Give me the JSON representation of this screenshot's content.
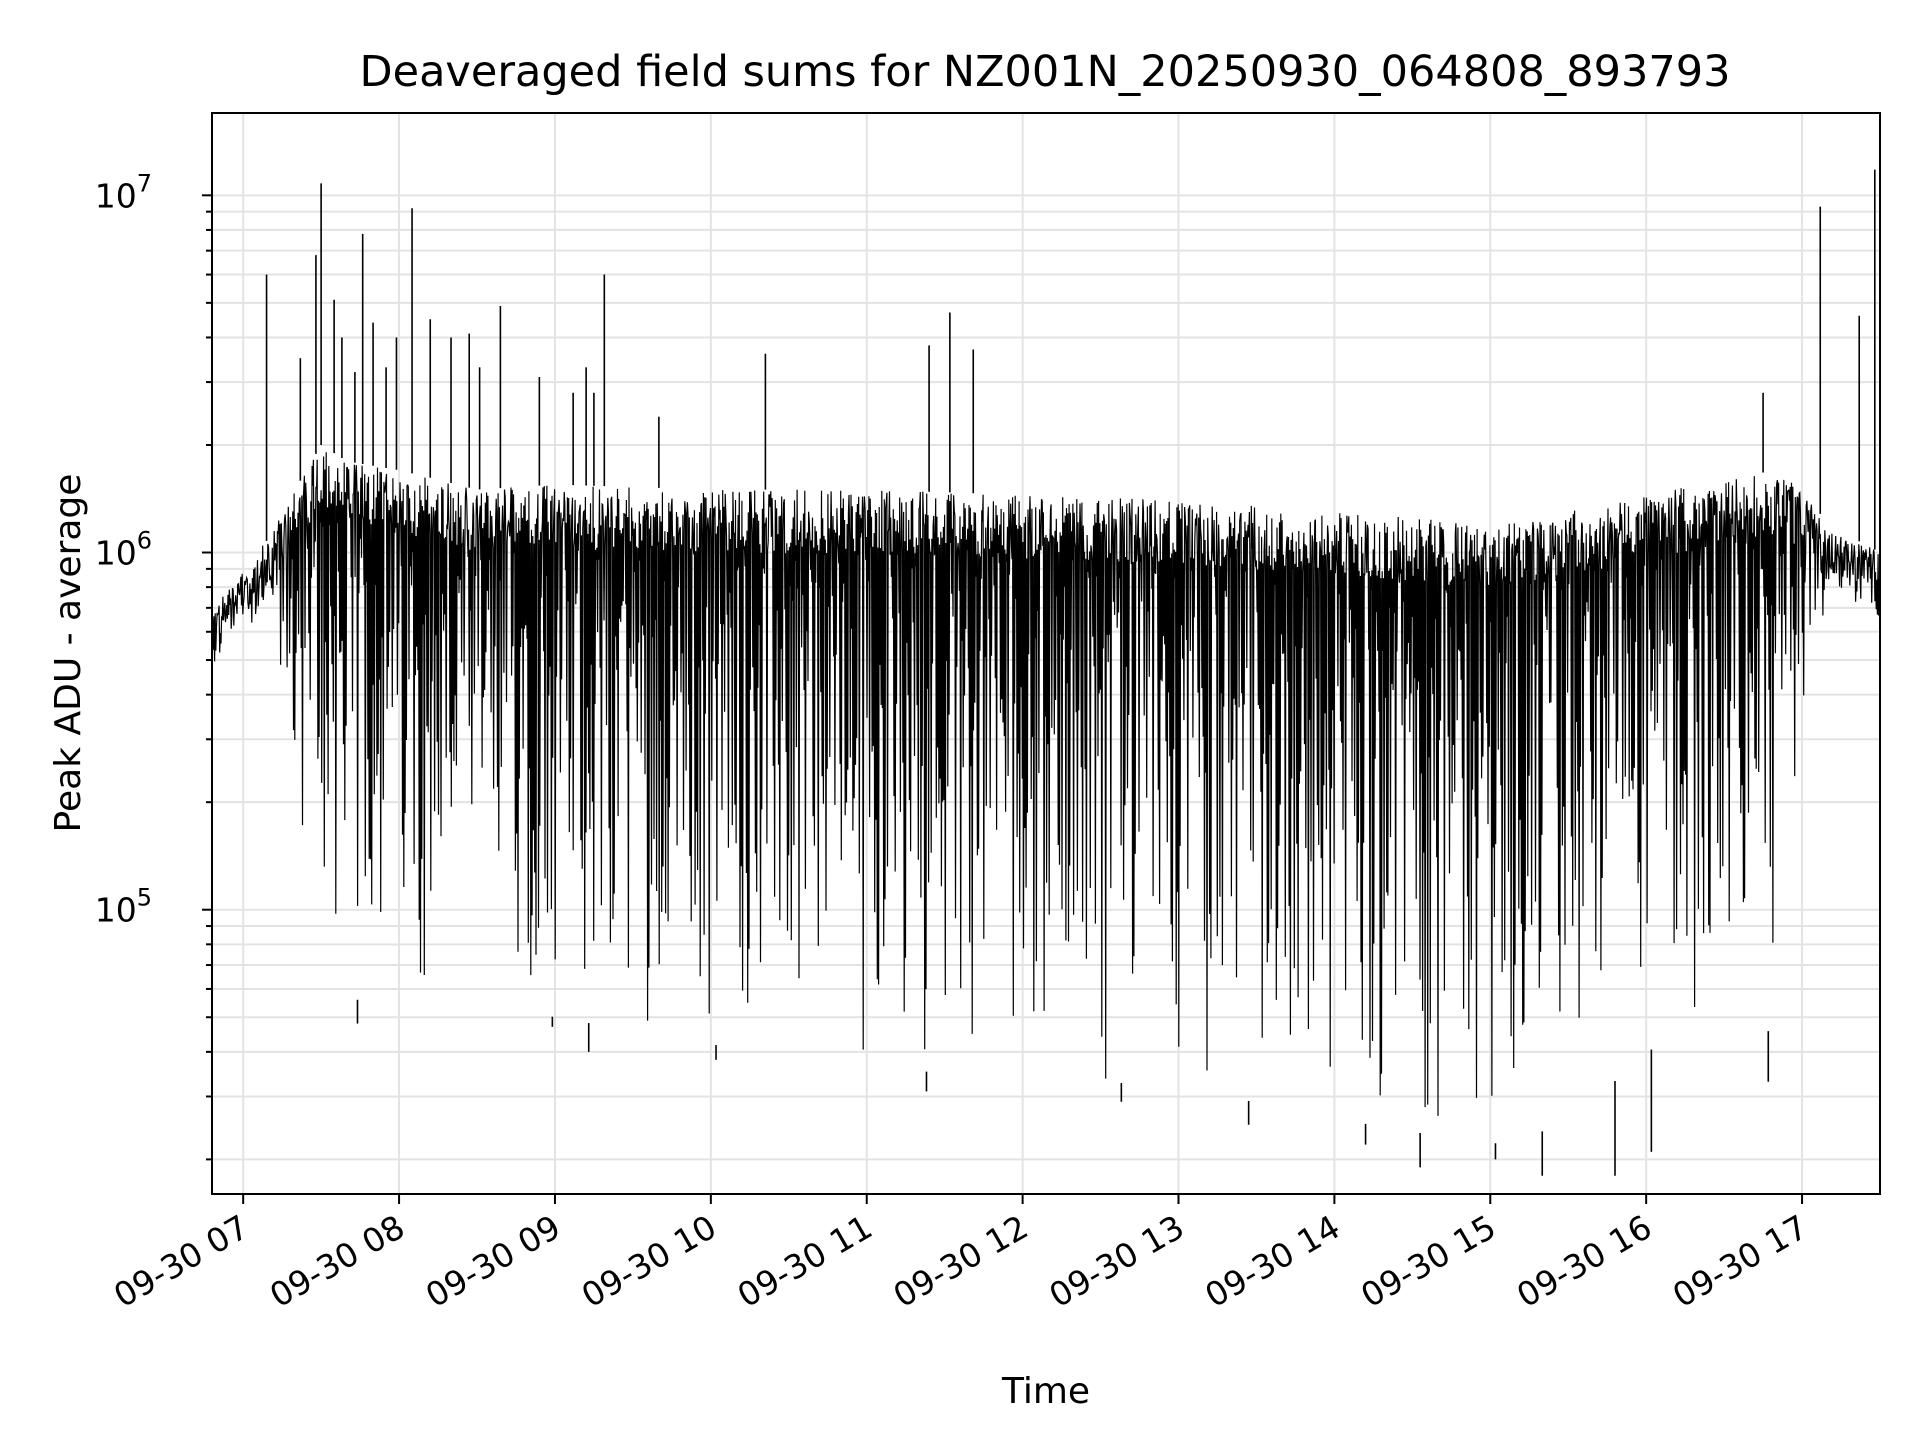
{
  "chart_data": {
    "type": "line",
    "title": "Deaveraged field sums for NZ001N_20250930_064808_893793",
    "xlabel": "Time",
    "ylabel": "Peak ADU - average",
    "y_scale": "log",
    "ylim": [
      16000,
      17000000
    ],
    "xlim": [
      "2025-09-30 06:48",
      "2025-09-30 17:30"
    ],
    "grid": true,
    "line_color": "#000000",
    "x_ticks": [
      {
        "value": "2025-09-30 07:00",
        "label": "09-30 07"
      },
      {
        "value": "2025-09-30 08:00",
        "label": "09-30 08"
      },
      {
        "value": "2025-09-30 09:00",
        "label": "09-30 09"
      },
      {
        "value": "2025-09-30 10:00",
        "label": "09-30 10"
      },
      {
        "value": "2025-09-30 11:00",
        "label": "09-30 11"
      },
      {
        "value": "2025-09-30 12:00",
        "label": "09-30 12"
      },
      {
        "value": "2025-09-30 13:00",
        "label": "09-30 13"
      },
      {
        "value": "2025-09-30 14:00",
        "label": "09-30 14"
      },
      {
        "value": "2025-09-30 15:00",
        "label": "09-30 15"
      },
      {
        "value": "2025-09-30 16:00",
        "label": "09-30 16"
      },
      {
        "value": "2025-09-30 17:00",
        "label": "09-30 17"
      }
    ],
    "y_ticks": [
      {
        "value": 100000,
        "base": "10",
        "exp": "5"
      },
      {
        "value": 1000000,
        "base": "10",
        "exp": "6"
      },
      {
        "value": 10000000,
        "base": "10",
        "exp": "7"
      }
    ],
    "envelope": {
      "time": [
        "2025-09-30 06:48",
        "2025-09-30 07:00",
        "2025-09-30 07:10",
        "2025-09-30 07:20",
        "2025-09-30 07:30",
        "2025-09-30 07:40",
        "2025-09-30 08:00",
        "2025-09-30 08:15",
        "2025-09-30 08:30",
        "2025-09-30 09:00",
        "2025-09-30 10:00",
        "2025-09-30 11:00",
        "2025-09-30 12:00",
        "2025-09-30 13:00",
        "2025-09-30 14:00",
        "2025-09-30 15:00",
        "2025-09-30 15:30",
        "2025-09-30 16:00",
        "2025-09-30 16:30",
        "2025-09-30 16:50",
        "2025-09-30 17:00",
        "2025-09-30 17:10",
        "2025-09-30 17:30"
      ],
      "upper": [
        700000,
        900000,
        1100000,
        1500000,
        2000000,
        1800000,
        1700000,
        1600000,
        1500000,
        1550000,
        1500000,
        1500000,
        1450000,
        1400000,
        1300000,
        1200000,
        1300000,
        1450000,
        1600000,
        1700000,
        1500000,
        1200000,
        1000000
      ],
      "lower": [
        500000,
        700000,
        600000,
        150000,
        60000,
        55000,
        60000,
        55000,
        55000,
        50000,
        42000,
        36000,
        34000,
        32000,
        26000,
        22000,
        25000,
        40000,
        50000,
        45000,
        300000,
        800000,
        700000
      ]
    },
    "spikes": [
      {
        "time": "2025-09-30 07:09",
        "value": 6000000
      },
      {
        "time": "2025-09-30 07:22",
        "value": 3500000
      },
      {
        "time": "2025-09-30 07:28",
        "value": 6800000
      },
      {
        "time": "2025-09-30 07:30",
        "value": 10800000
      },
      {
        "time": "2025-09-30 07:35",
        "value": 5100000
      },
      {
        "time": "2025-09-30 07:38",
        "value": 4000000
      },
      {
        "time": "2025-09-30 07:43",
        "value": 3200000
      },
      {
        "time": "2025-09-30 07:46",
        "value": 7800000
      },
      {
        "time": "2025-09-30 07:50",
        "value": 4400000
      },
      {
        "time": "2025-09-30 07:55",
        "value": 3300000
      },
      {
        "time": "2025-09-30 07:59",
        "value": 4000000
      },
      {
        "time": "2025-09-30 08:05",
        "value": 9200000
      },
      {
        "time": "2025-09-30 08:12",
        "value": 4500000
      },
      {
        "time": "2025-09-30 08:20",
        "value": 4000000
      },
      {
        "time": "2025-09-30 08:27",
        "value": 4100000
      },
      {
        "time": "2025-09-30 08:31",
        "value": 3300000
      },
      {
        "time": "2025-09-30 08:39",
        "value": 4900000
      },
      {
        "time": "2025-09-30 08:54",
        "value": 3100000
      },
      {
        "time": "2025-09-30 09:07",
        "value": 2800000
      },
      {
        "time": "2025-09-30 09:12",
        "value": 3300000
      },
      {
        "time": "2025-09-30 09:15",
        "value": 2800000
      },
      {
        "time": "2025-09-30 09:19",
        "value": 6000000
      },
      {
        "time": "2025-09-30 09:40",
        "value": 2400000
      },
      {
        "time": "2025-09-30 10:21",
        "value": 3600000
      },
      {
        "time": "2025-09-30 11:24",
        "value": 3800000
      },
      {
        "time": "2025-09-30 11:32",
        "value": 4700000
      },
      {
        "time": "2025-09-30 11:41",
        "value": 3700000
      },
      {
        "time": "2025-09-30 16:45",
        "value": 2800000
      },
      {
        "time": "2025-09-30 17:07",
        "value": 9300000
      },
      {
        "time": "2025-09-30 17:22",
        "value": 4600000
      },
      {
        "time": "2025-09-30 17:28",
        "value": 11800000
      }
    ],
    "dips": [
      {
        "time": "2025-09-30 07:44",
        "value": 48000
      },
      {
        "time": "2025-09-30 08:59",
        "value": 47000
      },
      {
        "time": "2025-09-30 09:13",
        "value": 40000
      },
      {
        "time": "2025-09-30 10:02",
        "value": 38000
      },
      {
        "time": "2025-09-30 11:23",
        "value": 31000
      },
      {
        "time": "2025-09-30 12:38",
        "value": 29000
      },
      {
        "time": "2025-09-30 13:27",
        "value": 25000
      },
      {
        "time": "2025-09-30 14:12",
        "value": 22000
      },
      {
        "time": "2025-09-30 14:33",
        "value": 19000
      },
      {
        "time": "2025-09-30 15:02",
        "value": 20000
      },
      {
        "time": "2025-09-30 15:20",
        "value": 18000
      },
      {
        "time": "2025-09-30 15:48",
        "value": 18000
      },
      {
        "time": "2025-09-30 16:02",
        "value": 21000
      },
      {
        "time": "2025-09-30 16:47",
        "value": 33000
      }
    ]
  }
}
